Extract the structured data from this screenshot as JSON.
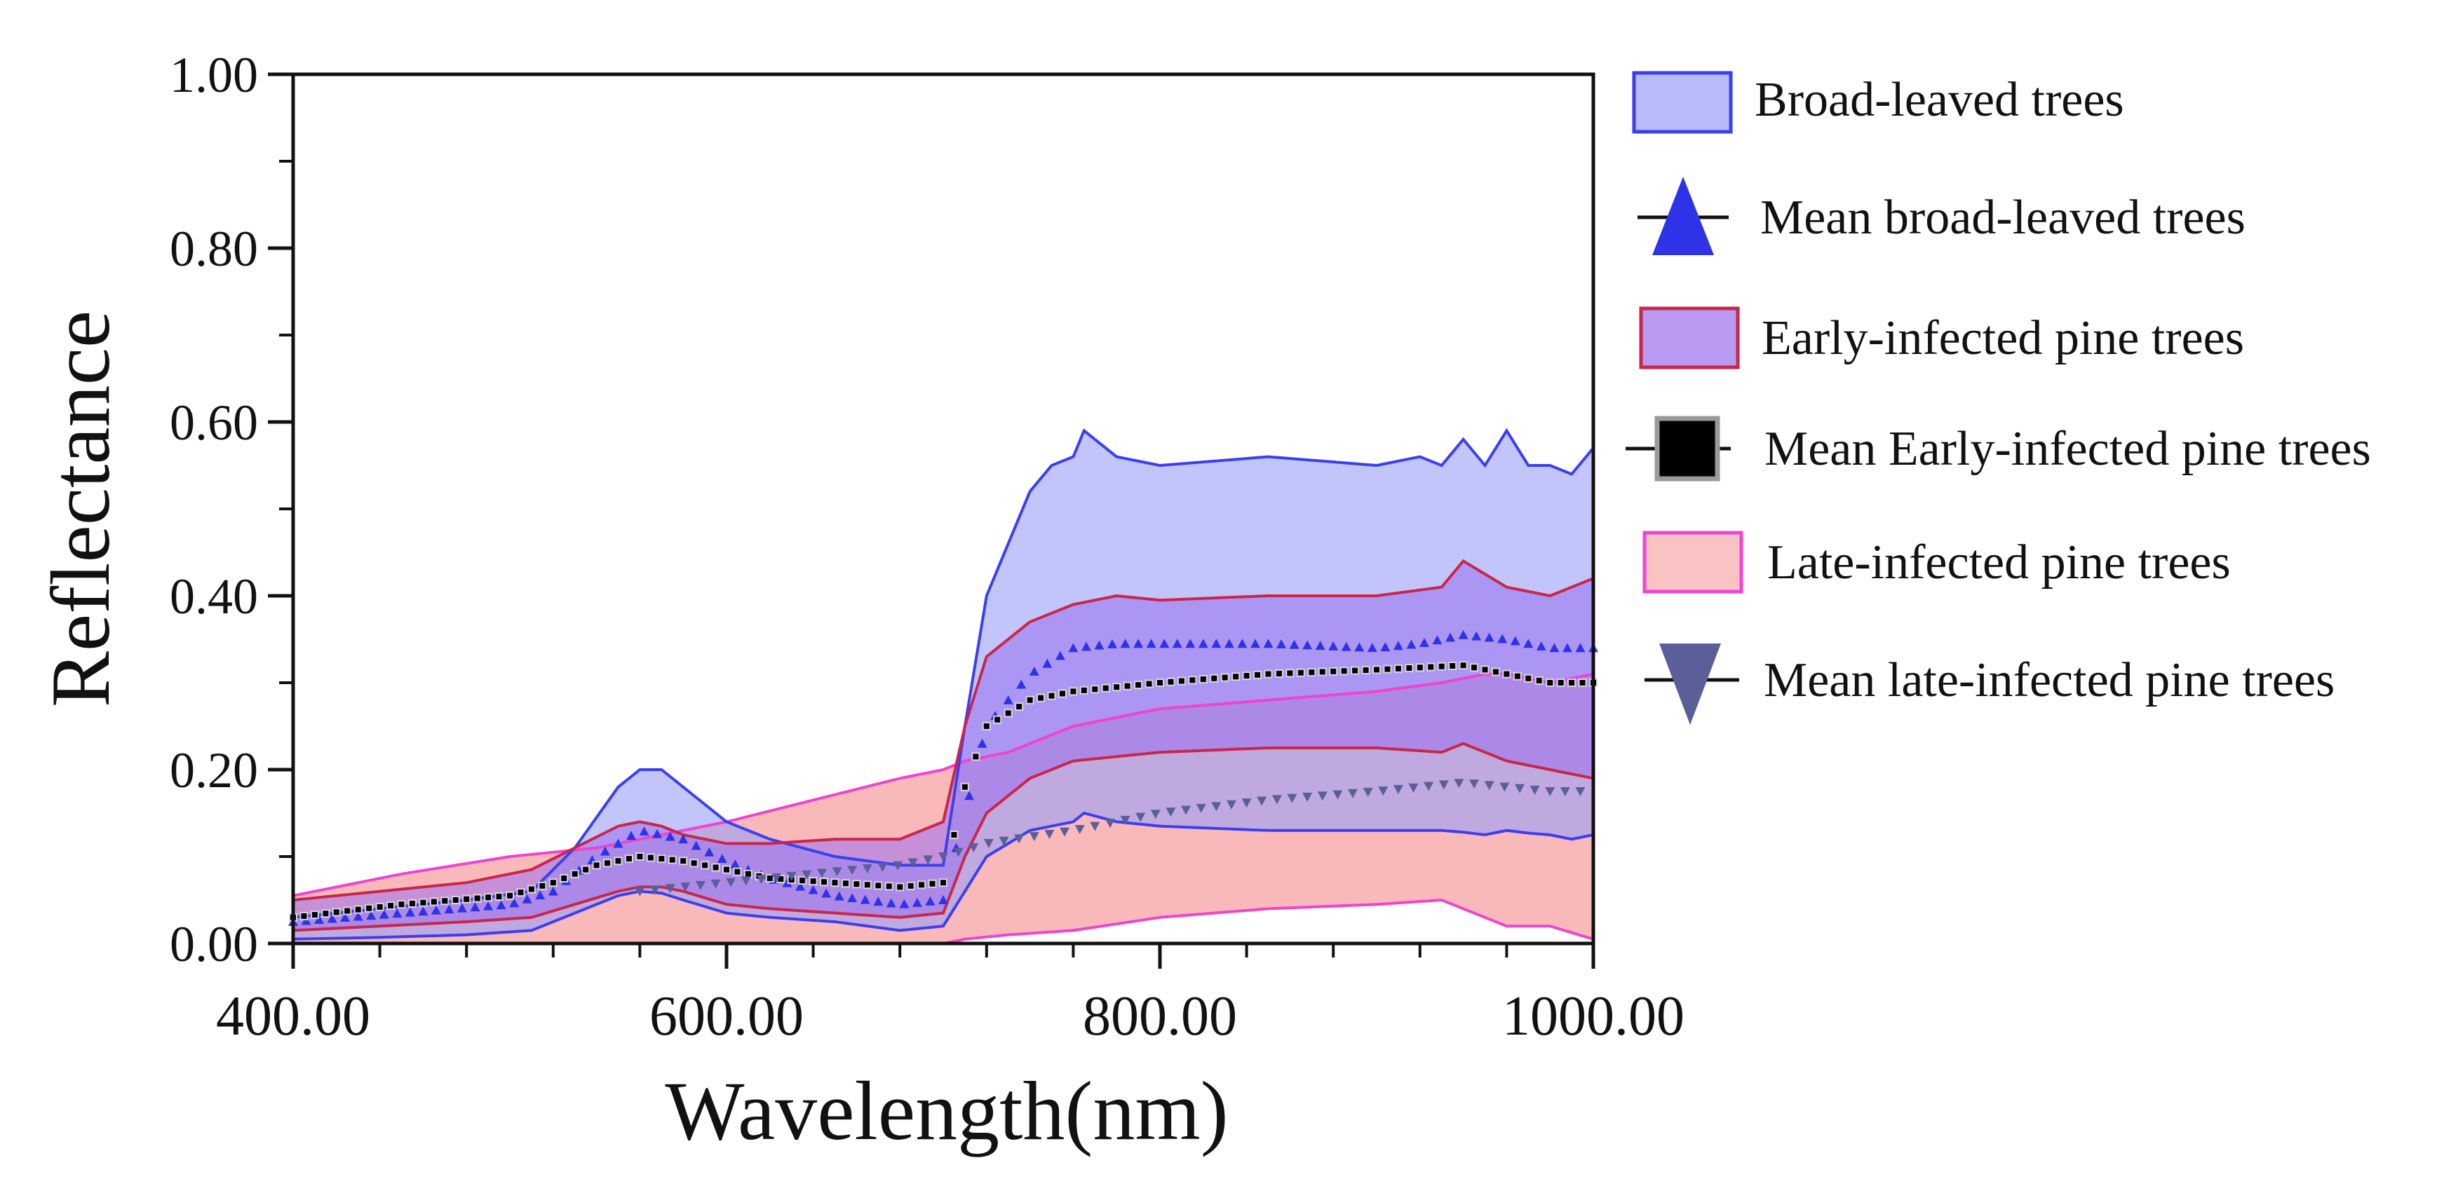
{
  "chart_data": {
    "type": "area",
    "xlabel": "Wavelength(nm)",
    "ylabel": "Reflectance",
    "xlim": [
      400,
      1000
    ],
    "ylim": [
      0,
      1
    ],
    "x_ticks": [
      400,
      600,
      800,
      1000
    ],
    "x_tick_labels": [
      "400.00",
      "600.00",
      "800.00",
      "1000.00"
    ],
    "x_minor_step": 40,
    "y_ticks": [
      0,
      0.2,
      0.4,
      0.6,
      0.8,
      1.0
    ],
    "y_tick_labels": [
      "0.00",
      "0.20",
      "0.40",
      "0.60",
      "0.80",
      "1.00"
    ],
    "legend_position": "right",
    "colors": {
      "broad_fill": "#9a9ef5",
      "broad_line": "#3b3ff0",
      "early_fill": "#9b6fee",
      "early_line": "#c8264a",
      "late_fill": "#f7a8aa",
      "late_line": "#ee44d0",
      "mean_broad": "#2f33e8",
      "mean_early": "#000000",
      "mean_late": "#5a5f9a"
    },
    "series": [
      {
        "name": "Broad-leaved trees",
        "kind": "band",
        "x": [
          400,
          440,
          480,
          510,
          530,
          550,
          560,
          570,
          580,
          600,
          620,
          650,
          680,
          700,
          710,
          720,
          740,
          750,
          760,
          765,
          780,
          800,
          850,
          900,
          920,
          930,
          940,
          950,
          960,
          970,
          980,
          990,
          1000
        ],
        "upper": [
          0.03,
          0.04,
          0.05,
          0.06,
          0.11,
          0.18,
          0.2,
          0.2,
          0.18,
          0.14,
          0.12,
          0.1,
          0.09,
          0.09,
          0.25,
          0.4,
          0.52,
          0.55,
          0.56,
          0.59,
          0.56,
          0.55,
          0.56,
          0.55,
          0.56,
          0.55,
          0.58,
          0.55,
          0.59,
          0.55,
          0.55,
          0.54,
          0.57
        ],
        "lower": [
          0.005,
          0.007,
          0.01,
          0.015,
          0.035,
          0.055,
          0.06,
          0.058,
          0.05,
          0.035,
          0.03,
          0.025,
          0.015,
          0.02,
          0.06,
          0.1,
          0.13,
          0.135,
          0.14,
          0.15,
          0.14,
          0.135,
          0.13,
          0.13,
          0.13,
          0.13,
          0.128,
          0.125,
          0.13,
          0.127,
          0.125,
          0.12,
          0.125
        ]
      },
      {
        "name": "Mean broad-leaved trees",
        "kind": "marker-triangle-up",
        "x": [
          400,
          450,
          500,
          520,
          540,
          560,
          580,
          600,
          620,
          650,
          680,
          700,
          710,
          720,
          740,
          760,
          780,
          800,
          850,
          900,
          920,
          940,
          960,
          980,
          1000
        ],
        "y": [
          0.025,
          0.035,
          0.045,
          0.06,
          0.1,
          0.13,
          0.12,
          0.095,
          0.075,
          0.055,
          0.045,
          0.05,
          0.15,
          0.25,
          0.31,
          0.34,
          0.345,
          0.345,
          0.345,
          0.34,
          0.345,
          0.355,
          0.35,
          0.34,
          0.34
        ]
      },
      {
        "name": "Early-infected pine trees",
        "kind": "band",
        "x": [
          400,
          440,
          480,
          510,
          530,
          550,
          560,
          570,
          580,
          600,
          620,
          650,
          680,
          700,
          710,
          720,
          740,
          760,
          780,
          800,
          850,
          900,
          930,
          940,
          960,
          980,
          1000
        ],
        "upper": [
          0.05,
          0.06,
          0.07,
          0.085,
          0.11,
          0.135,
          0.14,
          0.135,
          0.125,
          0.115,
          0.115,
          0.12,
          0.12,
          0.14,
          0.25,
          0.33,
          0.37,
          0.39,
          0.4,
          0.395,
          0.4,
          0.4,
          0.41,
          0.44,
          0.41,
          0.4,
          0.42
        ],
        "lower": [
          0.015,
          0.02,
          0.025,
          0.03,
          0.045,
          0.06,
          0.065,
          0.065,
          0.06,
          0.045,
          0.04,
          0.035,
          0.03,
          0.035,
          0.1,
          0.15,
          0.19,
          0.21,
          0.215,
          0.22,
          0.225,
          0.225,
          0.22,
          0.23,
          0.21,
          0.2,
          0.19
        ]
      },
      {
        "name": "Mean Early-infected pine trees",
        "kind": "marker-square",
        "x": [
          400,
          450,
          500,
          520,
          540,
          560,
          580,
          600,
          620,
          650,
          680,
          700,
          710,
          720,
          740,
          760,
          780,
          800,
          850,
          900,
          940,
          960,
          980,
          1000
        ],
        "y": [
          0.03,
          0.045,
          0.055,
          0.07,
          0.09,
          0.1,
          0.095,
          0.085,
          0.075,
          0.07,
          0.065,
          0.07,
          0.18,
          0.25,
          0.28,
          0.29,
          0.295,
          0.3,
          0.31,
          0.315,
          0.32,
          0.31,
          0.3,
          0.3
        ]
      },
      {
        "name": "Late-infected pine trees",
        "kind": "band",
        "x": [
          400,
          450,
          500,
          540,
          570,
          600,
          640,
          680,
          700,
          710,
          730,
          760,
          800,
          850,
          900,
          930,
          950,
          960,
          980,
          1000
        ],
        "upper": [
          0.055,
          0.08,
          0.1,
          0.11,
          0.125,
          0.14,
          0.165,
          0.19,
          0.2,
          0.21,
          0.22,
          0.25,
          0.27,
          0.28,
          0.29,
          0.3,
          0.31,
          0.31,
          0.3,
          0.31
        ],
        "lower": [
          0.0,
          0.0,
          0.0,
          0.0,
          0.0,
          0.0,
          0.0,
          0.0,
          0.0,
          0.005,
          0.01,
          0.015,
          0.03,
          0.04,
          0.045,
          0.05,
          0.03,
          0.02,
          0.02,
          0.005
        ]
      },
      {
        "name": "Mean late-infected pine trees",
        "kind": "marker-triangle-down",
        "x": [
          560,
          580,
          600,
          640,
          680,
          700,
          720,
          760,
          800,
          850,
          900,
          940,
          960,
          980,
          1000
        ],
        "y": [
          0.06,
          0.065,
          0.07,
          0.08,
          0.09,
          0.1,
          0.115,
          0.13,
          0.15,
          0.165,
          0.175,
          0.185,
          0.18,
          0.175,
          0.175
        ]
      }
    ]
  }
}
